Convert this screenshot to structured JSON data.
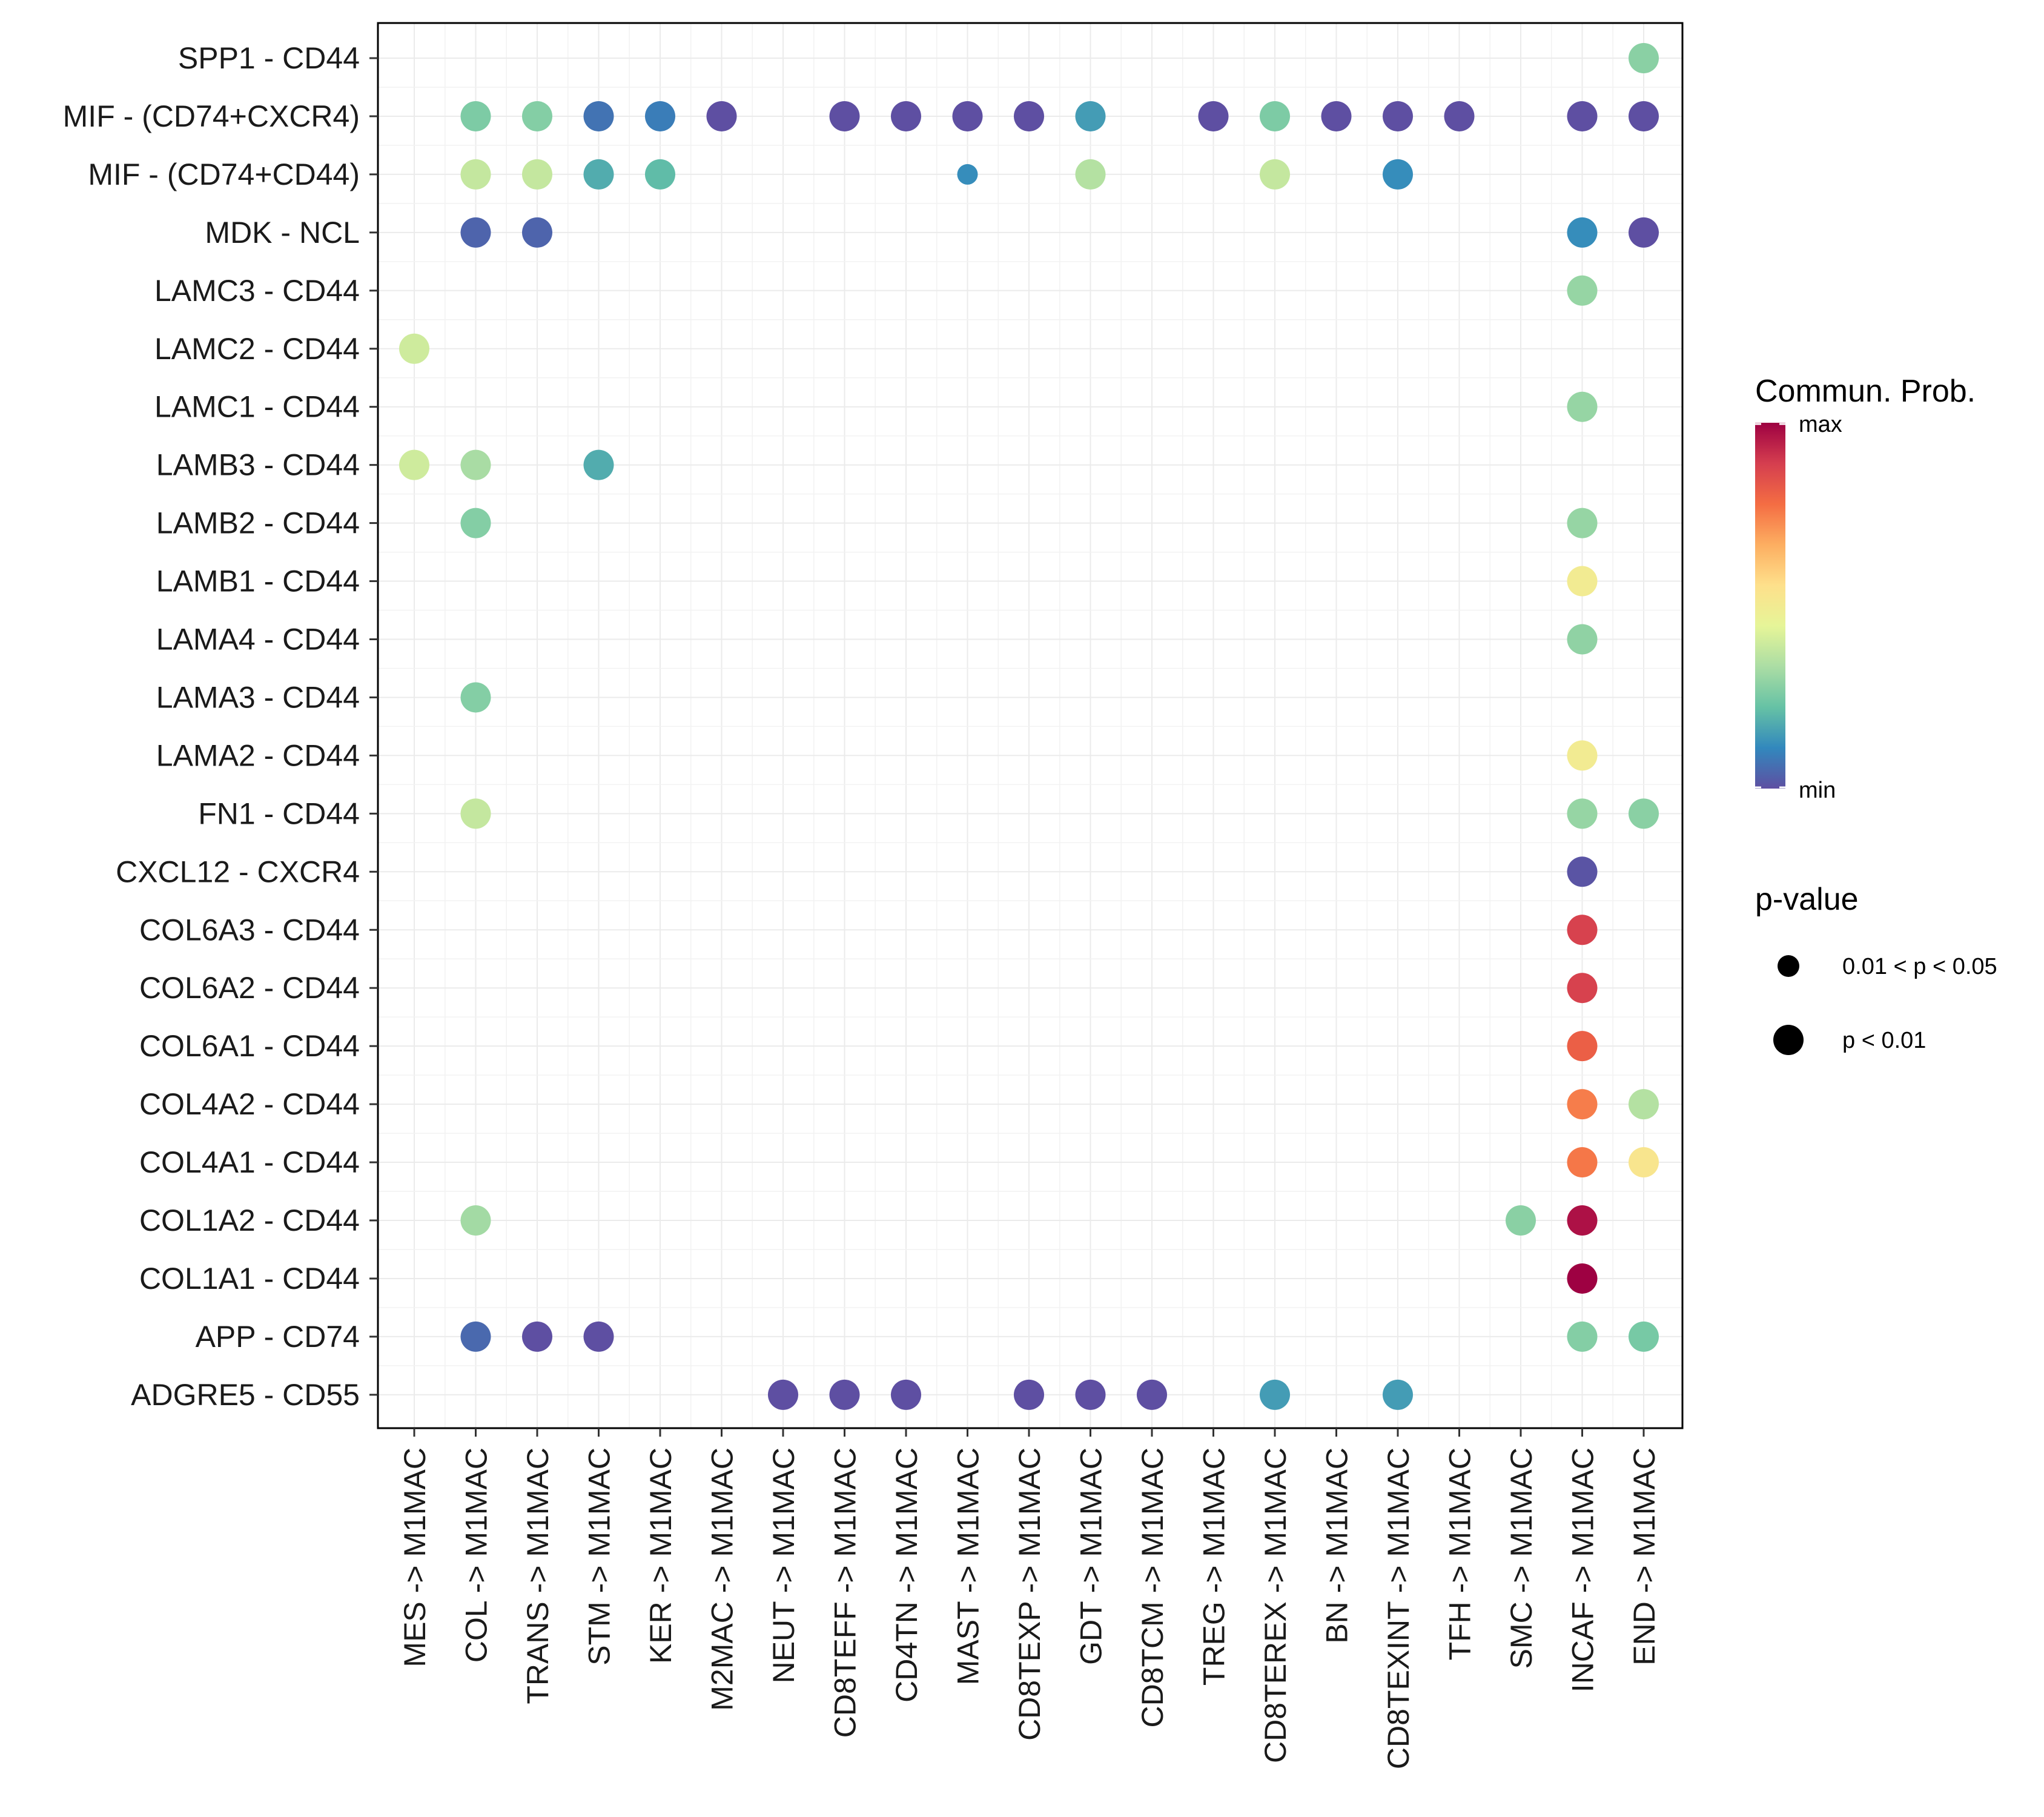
{
  "chart_data": {
    "type": "scatter",
    "subtype": "dot-matrix",
    "title": "",
    "xlabel": "",
    "ylabel": "",
    "grid": true,
    "x_categories": [
      "MES -> M1MAC",
      "COL -> M1MAC",
      "TRANS -> M1MAC",
      "STM -> M1MAC",
      "KER -> M1MAC",
      "M2MAC -> M1MAC",
      "NEUT -> M1MAC",
      "CD8TEFF -> M1MAC",
      "CD4TN -> M1MAC",
      "MAST -> M1MAC",
      "CD8TEXP -> M1MAC",
      "GDT -> M1MAC",
      "CD8TCM -> M1MAC",
      "TREG -> M1MAC",
      "CD8TEREX -> M1MAC",
      "BN -> M1MAC",
      "CD8TEXINT -> M1MAC",
      "TFH -> M1MAC",
      "SMC -> M1MAC",
      "INCAF -> M1MAC",
      "END -> M1MAC"
    ],
    "y_categories": [
      "SPP1 - CD44",
      "MIF - (CD74+CXCR4)",
      "MIF - (CD74+CD44)",
      "MDK - NCL",
      "LAMC3 - CD44",
      "LAMC2 - CD44",
      "LAMC1 - CD44",
      "LAMB3 - CD44",
      "LAMB2 - CD44",
      "LAMB1 - CD44",
      "LAMA4 - CD44",
      "LAMA3 - CD44",
      "LAMA2 - CD44",
      "FN1 - CD44",
      "CXCL12 - CXCR4",
      "COL6A3 - CD44",
      "COL6A2 - CD44",
      "COL6A1 - CD44",
      "COL4A2 - CD44",
      "COL4A1 - CD44",
      "COL1A2 - CD44",
      "COL1A1 - CD44",
      "APP - CD74",
      "ADGRE5 - CD55"
    ],
    "points": [
      {
        "row": 0,
        "col": 20,
        "prob": 0.28,
        "pvalue": 1
      },
      {
        "row": 1,
        "col": 1,
        "prob": 0.26,
        "pvalue": 1
      },
      {
        "row": 1,
        "col": 2,
        "prob": 0.27,
        "pvalue": 1
      },
      {
        "row": 1,
        "col": 3,
        "prob": 0.07,
        "pvalue": 1
      },
      {
        "row": 1,
        "col": 4,
        "prob": 0.09,
        "pvalue": 1
      },
      {
        "row": 1,
        "col": 5,
        "prob": 0.0,
        "pvalue": 1
      },
      {
        "row": 1,
        "col": 7,
        "prob": 0.0,
        "pvalue": 1
      },
      {
        "row": 1,
        "col": 8,
        "prob": 0.0,
        "pvalue": 1
      },
      {
        "row": 1,
        "col": 9,
        "prob": 0.0,
        "pvalue": 1
      },
      {
        "row": 1,
        "col": 10,
        "prob": 0.0,
        "pvalue": 1
      },
      {
        "row": 1,
        "col": 11,
        "prob": 0.15,
        "pvalue": 1
      },
      {
        "row": 1,
        "col": 13,
        "prob": 0.0,
        "pvalue": 1
      },
      {
        "row": 1,
        "col": 14,
        "prob": 0.26,
        "pvalue": 1
      },
      {
        "row": 1,
        "col": 15,
        "prob": 0.0,
        "pvalue": 1
      },
      {
        "row": 1,
        "col": 16,
        "prob": 0.0,
        "pvalue": 1
      },
      {
        "row": 1,
        "col": 17,
        "prob": 0.0,
        "pvalue": 1
      },
      {
        "row": 1,
        "col": 19,
        "prob": 0.0,
        "pvalue": 1
      },
      {
        "row": 1,
        "col": 20,
        "prob": 0.0,
        "pvalue": 1
      },
      {
        "row": 2,
        "col": 1,
        "prob": 0.38,
        "pvalue": 1
      },
      {
        "row": 2,
        "col": 2,
        "prob": 0.38,
        "pvalue": 1
      },
      {
        "row": 2,
        "col": 3,
        "prob": 0.18,
        "pvalue": 1
      },
      {
        "row": 2,
        "col": 4,
        "prob": 0.21,
        "pvalue": 1
      },
      {
        "row": 2,
        "col": 9,
        "prob": 0.12,
        "pvalue": 2
      },
      {
        "row": 2,
        "col": 11,
        "prob": 0.35,
        "pvalue": 1
      },
      {
        "row": 2,
        "col": 14,
        "prob": 0.38,
        "pvalue": 1
      },
      {
        "row": 2,
        "col": 16,
        "prob": 0.12,
        "pvalue": 1
      },
      {
        "row": 3,
        "col": 1,
        "prob": 0.04,
        "pvalue": 1
      },
      {
        "row": 3,
        "col": 2,
        "prob": 0.04,
        "pvalue": 1
      },
      {
        "row": 3,
        "col": 19,
        "prob": 0.12,
        "pvalue": 1
      },
      {
        "row": 3,
        "col": 20,
        "prob": 0.0,
        "pvalue": 1
      },
      {
        "row": 4,
        "col": 19,
        "prob": 0.3,
        "pvalue": 1
      },
      {
        "row": 5,
        "col": 0,
        "prob": 0.4,
        "pvalue": 1
      },
      {
        "row": 6,
        "col": 19,
        "prob": 0.3,
        "pvalue": 1
      },
      {
        "row": 7,
        "col": 0,
        "prob": 0.4,
        "pvalue": 1
      },
      {
        "row": 7,
        "col": 1,
        "prob": 0.33,
        "pvalue": 1
      },
      {
        "row": 7,
        "col": 3,
        "prob": 0.18,
        "pvalue": 1
      },
      {
        "row": 8,
        "col": 1,
        "prob": 0.27,
        "pvalue": 1
      },
      {
        "row": 8,
        "col": 19,
        "prob": 0.3,
        "pvalue": 1
      },
      {
        "row": 9,
        "col": 19,
        "prob": 0.5,
        "pvalue": 1
      },
      {
        "row": 10,
        "col": 19,
        "prob": 0.29,
        "pvalue": 1
      },
      {
        "row": 11,
        "col": 1,
        "prob": 0.27,
        "pvalue": 1
      },
      {
        "row": 12,
        "col": 19,
        "prob": 0.5,
        "pvalue": 1
      },
      {
        "row": 13,
        "col": 1,
        "prob": 0.38,
        "pvalue": 1
      },
      {
        "row": 13,
        "col": 19,
        "prob": 0.3,
        "pvalue": 1
      },
      {
        "row": 13,
        "col": 20,
        "prob": 0.28,
        "pvalue": 1
      },
      {
        "row": 14,
        "col": 19,
        "prob": 0.01,
        "pvalue": 1
      },
      {
        "row": 15,
        "col": 19,
        "prob": 0.88,
        "pvalue": 1
      },
      {
        "row": 16,
        "col": 19,
        "prob": 0.88,
        "pvalue": 1
      },
      {
        "row": 17,
        "col": 19,
        "prob": 0.81,
        "pvalue": 1
      },
      {
        "row": 18,
        "col": 19,
        "prob": 0.75,
        "pvalue": 1
      },
      {
        "row": 18,
        "col": 20,
        "prob": 0.35,
        "pvalue": 1
      },
      {
        "row": 19,
        "col": 19,
        "prob": 0.76,
        "pvalue": 1
      },
      {
        "row": 19,
        "col": 20,
        "prob": 0.53,
        "pvalue": 1
      },
      {
        "row": 20,
        "col": 1,
        "prob": 0.32,
        "pvalue": 1
      },
      {
        "row": 20,
        "col": 18,
        "prob": 0.28,
        "pvalue": 1
      },
      {
        "row": 20,
        "col": 19,
        "prob": 0.97,
        "pvalue": 1
      },
      {
        "row": 21,
        "col": 19,
        "prob": 1.0,
        "pvalue": 1
      },
      {
        "row": 22,
        "col": 1,
        "prob": 0.05,
        "pvalue": 1
      },
      {
        "row": 22,
        "col": 2,
        "prob": 0.0,
        "pvalue": 1
      },
      {
        "row": 22,
        "col": 3,
        "prob": 0.0,
        "pvalue": 1
      },
      {
        "row": 22,
        "col": 19,
        "prob": 0.27,
        "pvalue": 1
      },
      {
        "row": 22,
        "col": 20,
        "prob": 0.25,
        "pvalue": 1
      },
      {
        "row": 23,
        "col": 6,
        "prob": 0.0,
        "pvalue": 1
      },
      {
        "row": 23,
        "col": 7,
        "prob": 0.0,
        "pvalue": 1
      },
      {
        "row": 23,
        "col": 8,
        "prob": 0.0,
        "pvalue": 1
      },
      {
        "row": 23,
        "col": 10,
        "prob": 0.0,
        "pvalue": 1
      },
      {
        "row": 23,
        "col": 11,
        "prob": 0.0,
        "pvalue": 1
      },
      {
        "row": 23,
        "col": 12,
        "prob": 0.0,
        "pvalue": 1
      },
      {
        "row": 23,
        "col": 14,
        "prob": 0.15,
        "pvalue": 1
      },
      {
        "row": 23,
        "col": 16,
        "prob": 0.15,
        "pvalue": 1
      }
    ],
    "color_legend": {
      "title": "Commun. Prob.",
      "max_label": "max",
      "min_label": "min",
      "palette": [
        "#5E4FA2",
        "#3288BD",
        "#66C2A5",
        "#ABDDA4",
        "#E6F598",
        "#FEE08B",
        "#FDAE61",
        "#F46D43",
        "#D53E4F",
        "#9E0142"
      ]
    },
    "size_legend": {
      "title": "p-value",
      "entries": [
        {
          "label": "0.01 < p < 0.05",
          "pvalue": 2
        },
        {
          "label": "p < 0.01",
          "pvalue": 1
        }
      ]
    }
  }
}
